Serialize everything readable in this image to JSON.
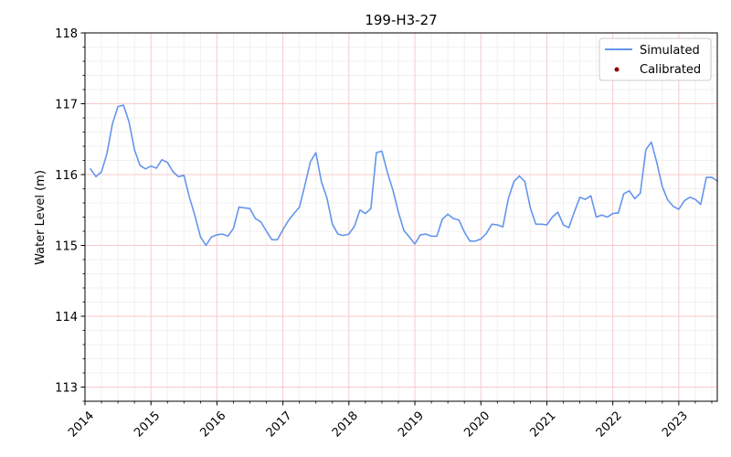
{
  "chart_data": {
    "type": "line",
    "title": "199-H3-27",
    "xlabel": "",
    "ylabel": "Water Level (m)",
    "ylim": [
      112.8,
      118
    ],
    "xlim": [
      "2014-01-01",
      "2023-08-01"
    ],
    "x_ticks": [
      "2014",
      "2015",
      "2016",
      "2017",
      "2018",
      "2019",
      "2020",
      "2021",
      "2022",
      "2023"
    ],
    "y_ticks": [
      "113",
      "114",
      "115",
      "116",
      "117",
      "118"
    ],
    "grid": true,
    "legend_position": "top-right",
    "legend": [
      "Simulated",
      "Calibrated"
    ],
    "colors": {
      "simulated": "#6495ed",
      "calibrated": "#8b0000",
      "major_grid": "#f7c9c9",
      "minor_grid": "#f0f0f0"
    },
    "series": [
      {
        "name": "Simulated",
        "x": [
          "2014-02",
          "2014-03",
          "2014-04",
          "2014-05",
          "2014-06",
          "2014-07",
          "2014-08",
          "2014-09",
          "2014-10",
          "2014-11",
          "2014-12",
          "2015-01",
          "2015-02",
          "2015-03",
          "2015-04",
          "2015-05",
          "2015-06",
          "2015-07",
          "2015-08",
          "2015-09",
          "2015-10",
          "2015-11",
          "2015-12",
          "2016-01",
          "2016-02",
          "2016-03",
          "2016-04",
          "2016-05",
          "2016-06",
          "2016-07",
          "2016-08",
          "2016-09",
          "2016-10",
          "2016-11",
          "2016-12",
          "2017-01",
          "2017-02",
          "2017-03",
          "2017-04",
          "2017-05",
          "2017-06",
          "2017-07",
          "2017-08",
          "2017-09",
          "2017-10",
          "2017-11",
          "2017-12",
          "2018-01",
          "2018-02",
          "2018-03",
          "2018-04",
          "2018-05",
          "2018-06",
          "2018-07",
          "2018-08",
          "2018-09",
          "2018-10",
          "2018-11",
          "2018-12",
          "2019-01",
          "2019-02",
          "2019-03",
          "2019-04",
          "2019-05",
          "2019-06",
          "2019-07",
          "2019-08",
          "2019-09",
          "2019-10",
          "2019-11",
          "2019-12",
          "2020-01",
          "2020-02",
          "2020-03",
          "2020-04",
          "2020-05",
          "2020-06",
          "2020-07",
          "2020-08",
          "2020-09",
          "2020-10",
          "2020-11",
          "2020-12",
          "2021-01",
          "2021-02",
          "2021-03",
          "2021-04",
          "2021-05",
          "2021-06",
          "2021-07",
          "2021-08",
          "2021-09",
          "2021-10",
          "2021-11",
          "2021-12",
          "2022-01",
          "2022-02",
          "2022-03",
          "2022-04",
          "2022-05",
          "2022-06",
          "2022-07",
          "2022-08",
          "2022-09",
          "2022-10",
          "2022-11",
          "2022-12",
          "2023-01",
          "2023-02",
          "2023-03",
          "2023-04",
          "2023-05",
          "2023-06",
          "2023-07",
          "2023-08"
        ],
        "values": [
          116.08,
          115.97,
          116.04,
          116.3,
          116.72,
          116.96,
          116.98,
          116.75,
          116.35,
          116.13,
          116.08,
          116.12,
          116.09,
          116.21,
          116.17,
          116.04,
          115.97,
          115.99,
          115.68,
          115.42,
          115.12,
          115.0,
          115.12,
          115.15,
          115.16,
          115.13,
          115.24,
          115.54,
          115.53,
          115.52,
          115.38,
          115.33,
          115.2,
          115.08,
          115.08,
          115.22,
          115.35,
          115.45,
          115.54,
          115.85,
          116.18,
          116.31,
          115.9,
          115.67,
          115.3,
          115.16,
          115.14,
          115.16,
          115.27,
          115.5,
          115.45,
          115.52,
          116.31,
          116.33,
          116.03,
          115.78,
          115.47,
          115.21,
          115.12,
          115.02,
          115.15,
          115.16,
          115.13,
          115.13,
          115.37,
          115.44,
          115.38,
          115.36,
          115.19,
          115.06,
          115.06,
          115.09,
          115.17,
          115.3,
          115.29,
          115.26,
          115.66,
          115.9,
          115.98,
          115.9,
          115.53,
          115.3,
          115.3,
          115.29,
          115.4,
          115.47,
          115.29,
          115.25,
          115.47,
          115.68,
          115.65,
          115.7,
          115.4,
          115.43,
          115.4,
          115.45,
          115.46,
          115.73,
          115.77,
          115.66,
          115.74,
          116.35,
          116.46,
          116.17,
          115.83,
          115.64,
          115.55,
          115.51,
          115.63,
          115.68,
          115.65,
          115.58,
          115.96,
          115.96,
          115.91
        ]
      },
      {
        "name": "Calibrated",
        "x": [],
        "values": []
      }
    ]
  }
}
